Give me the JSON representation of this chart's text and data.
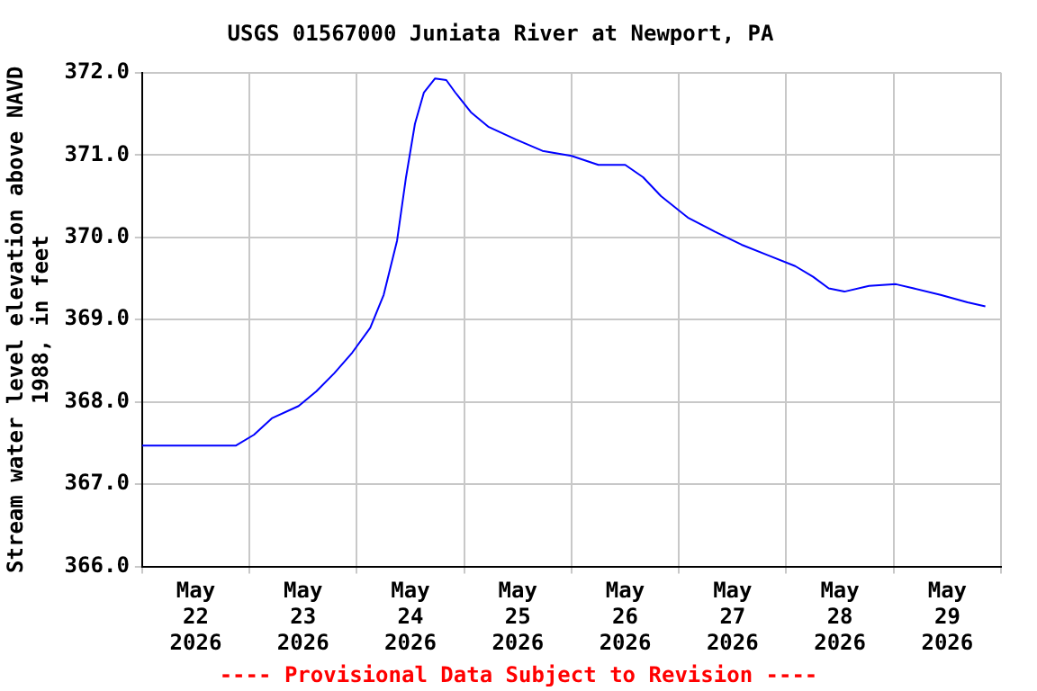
{
  "chart_data": {
    "type": "line",
    "title": "USGS 01567000 Juniata River at Newport, PA",
    "ylabel": "Stream water level elevation above NAVD 1988, in feet",
    "annotations": [
      "---- Provisional Data Subject to Revision ----"
    ],
    "x": [
      "2026-05-22T00:00",
      "2026-05-22T21:00",
      "2026-05-23T01:00",
      "2026-05-23T05:00",
      "2026-05-23T11:00",
      "2026-05-23T15:00",
      "2026-05-23T19:00",
      "2026-05-23T23:00",
      "2026-05-24T03:00",
      "2026-05-24T06:00",
      "2026-05-24T09:00",
      "2026-05-24T11:00",
      "2026-05-24T13:00",
      "2026-05-24T15:00",
      "2026-05-24T17:30",
      "2026-05-24T20:00",
      "2026-05-24T22:00",
      "2026-05-25T01:30",
      "2026-05-25T05:30",
      "2026-05-25T11:30",
      "2026-05-25T17:30",
      "2026-05-26T00:00",
      "2026-05-26T06:00",
      "2026-05-26T12:00",
      "2026-05-26T16:00",
      "2026-05-26T20:00",
      "2026-05-27T02:00",
      "2026-05-27T08:00",
      "2026-05-27T14:00",
      "2026-05-27T20:00",
      "2026-05-28T02:00",
      "2026-05-28T06:00",
      "2026-05-28T09:30",
      "2026-05-28T13:00",
      "2026-05-28T18:30",
      "2026-05-29T00:30",
      "2026-05-29T04:30",
      "2026-05-29T10:30",
      "2026-05-29T16:30",
      "2026-05-29T20:30"
    ],
    "series": [
      {
        "color": "#0000ff",
        "values": [
          367.47,
          367.47,
          367.6,
          367.8,
          367.95,
          368.13,
          368.35,
          368.6,
          368.9,
          369.3,
          369.96,
          370.73,
          371.38,
          371.76,
          371.93,
          371.91,
          371.76,
          371.52,
          371.34,
          371.19,
          371.05,
          370.99,
          370.88,
          370.88,
          370.73,
          370.5,
          370.24,
          370.07,
          369.91,
          369.78,
          369.65,
          369.52,
          369.38,
          369.34,
          369.41,
          369.43,
          369.38,
          369.3,
          369.21,
          369.16
        ]
      }
    ],
    "xlim": [
      "2026-05-22T00:00",
      "2026-05-30T00:00"
    ],
    "xticks": [
      {
        "value": "2026-05-22T00:00",
        "label": null
      },
      {
        "value": "2026-05-22T12:00",
        "label": "May\n22\n2026"
      },
      {
        "value": "2026-05-23T00:00",
        "label": null
      },
      {
        "value": "2026-05-23T12:00",
        "label": "May\n23\n2026"
      },
      {
        "value": "2026-05-24T00:00",
        "label": null
      },
      {
        "value": "2026-05-24T12:00",
        "label": "May\n24\n2026"
      },
      {
        "value": "2026-05-25T00:00",
        "label": null
      },
      {
        "value": "2026-05-25T12:00",
        "label": "May\n25\n2026"
      },
      {
        "value": "2026-05-26T00:00",
        "label": null
      },
      {
        "value": "2026-05-26T12:00",
        "label": "May\n26\n2026"
      },
      {
        "value": "2026-05-27T00:00",
        "label": null
      },
      {
        "value": "2026-05-27T12:00",
        "label": "May\n27\n2026"
      },
      {
        "value": "2026-05-28T00:00",
        "label": null
      },
      {
        "value": "2026-05-28T12:00",
        "label": "May\n28\n2026"
      },
      {
        "value": "2026-05-29T00:00",
        "label": null
      },
      {
        "value": "2026-05-29T12:00",
        "label": "May\n29\n2026"
      },
      {
        "value": "2026-05-30T00:00",
        "label": null
      }
    ],
    "ylim": [
      366,
      372
    ],
    "yticks": [
      {
        "value": 366,
        "label": "366.0"
      },
      {
        "value": 367,
        "label": "367.0"
      },
      {
        "value": 368,
        "label": "368.0"
      },
      {
        "value": 369,
        "label": "369.0"
      },
      {
        "value": 370,
        "label": "370.0"
      },
      {
        "value": 371,
        "label": "371.0"
      },
      {
        "value": 372,
        "label": "372.0"
      }
    ],
    "grid": true,
    "legend": false,
    "marker": "none",
    "line_style": "solid"
  }
}
